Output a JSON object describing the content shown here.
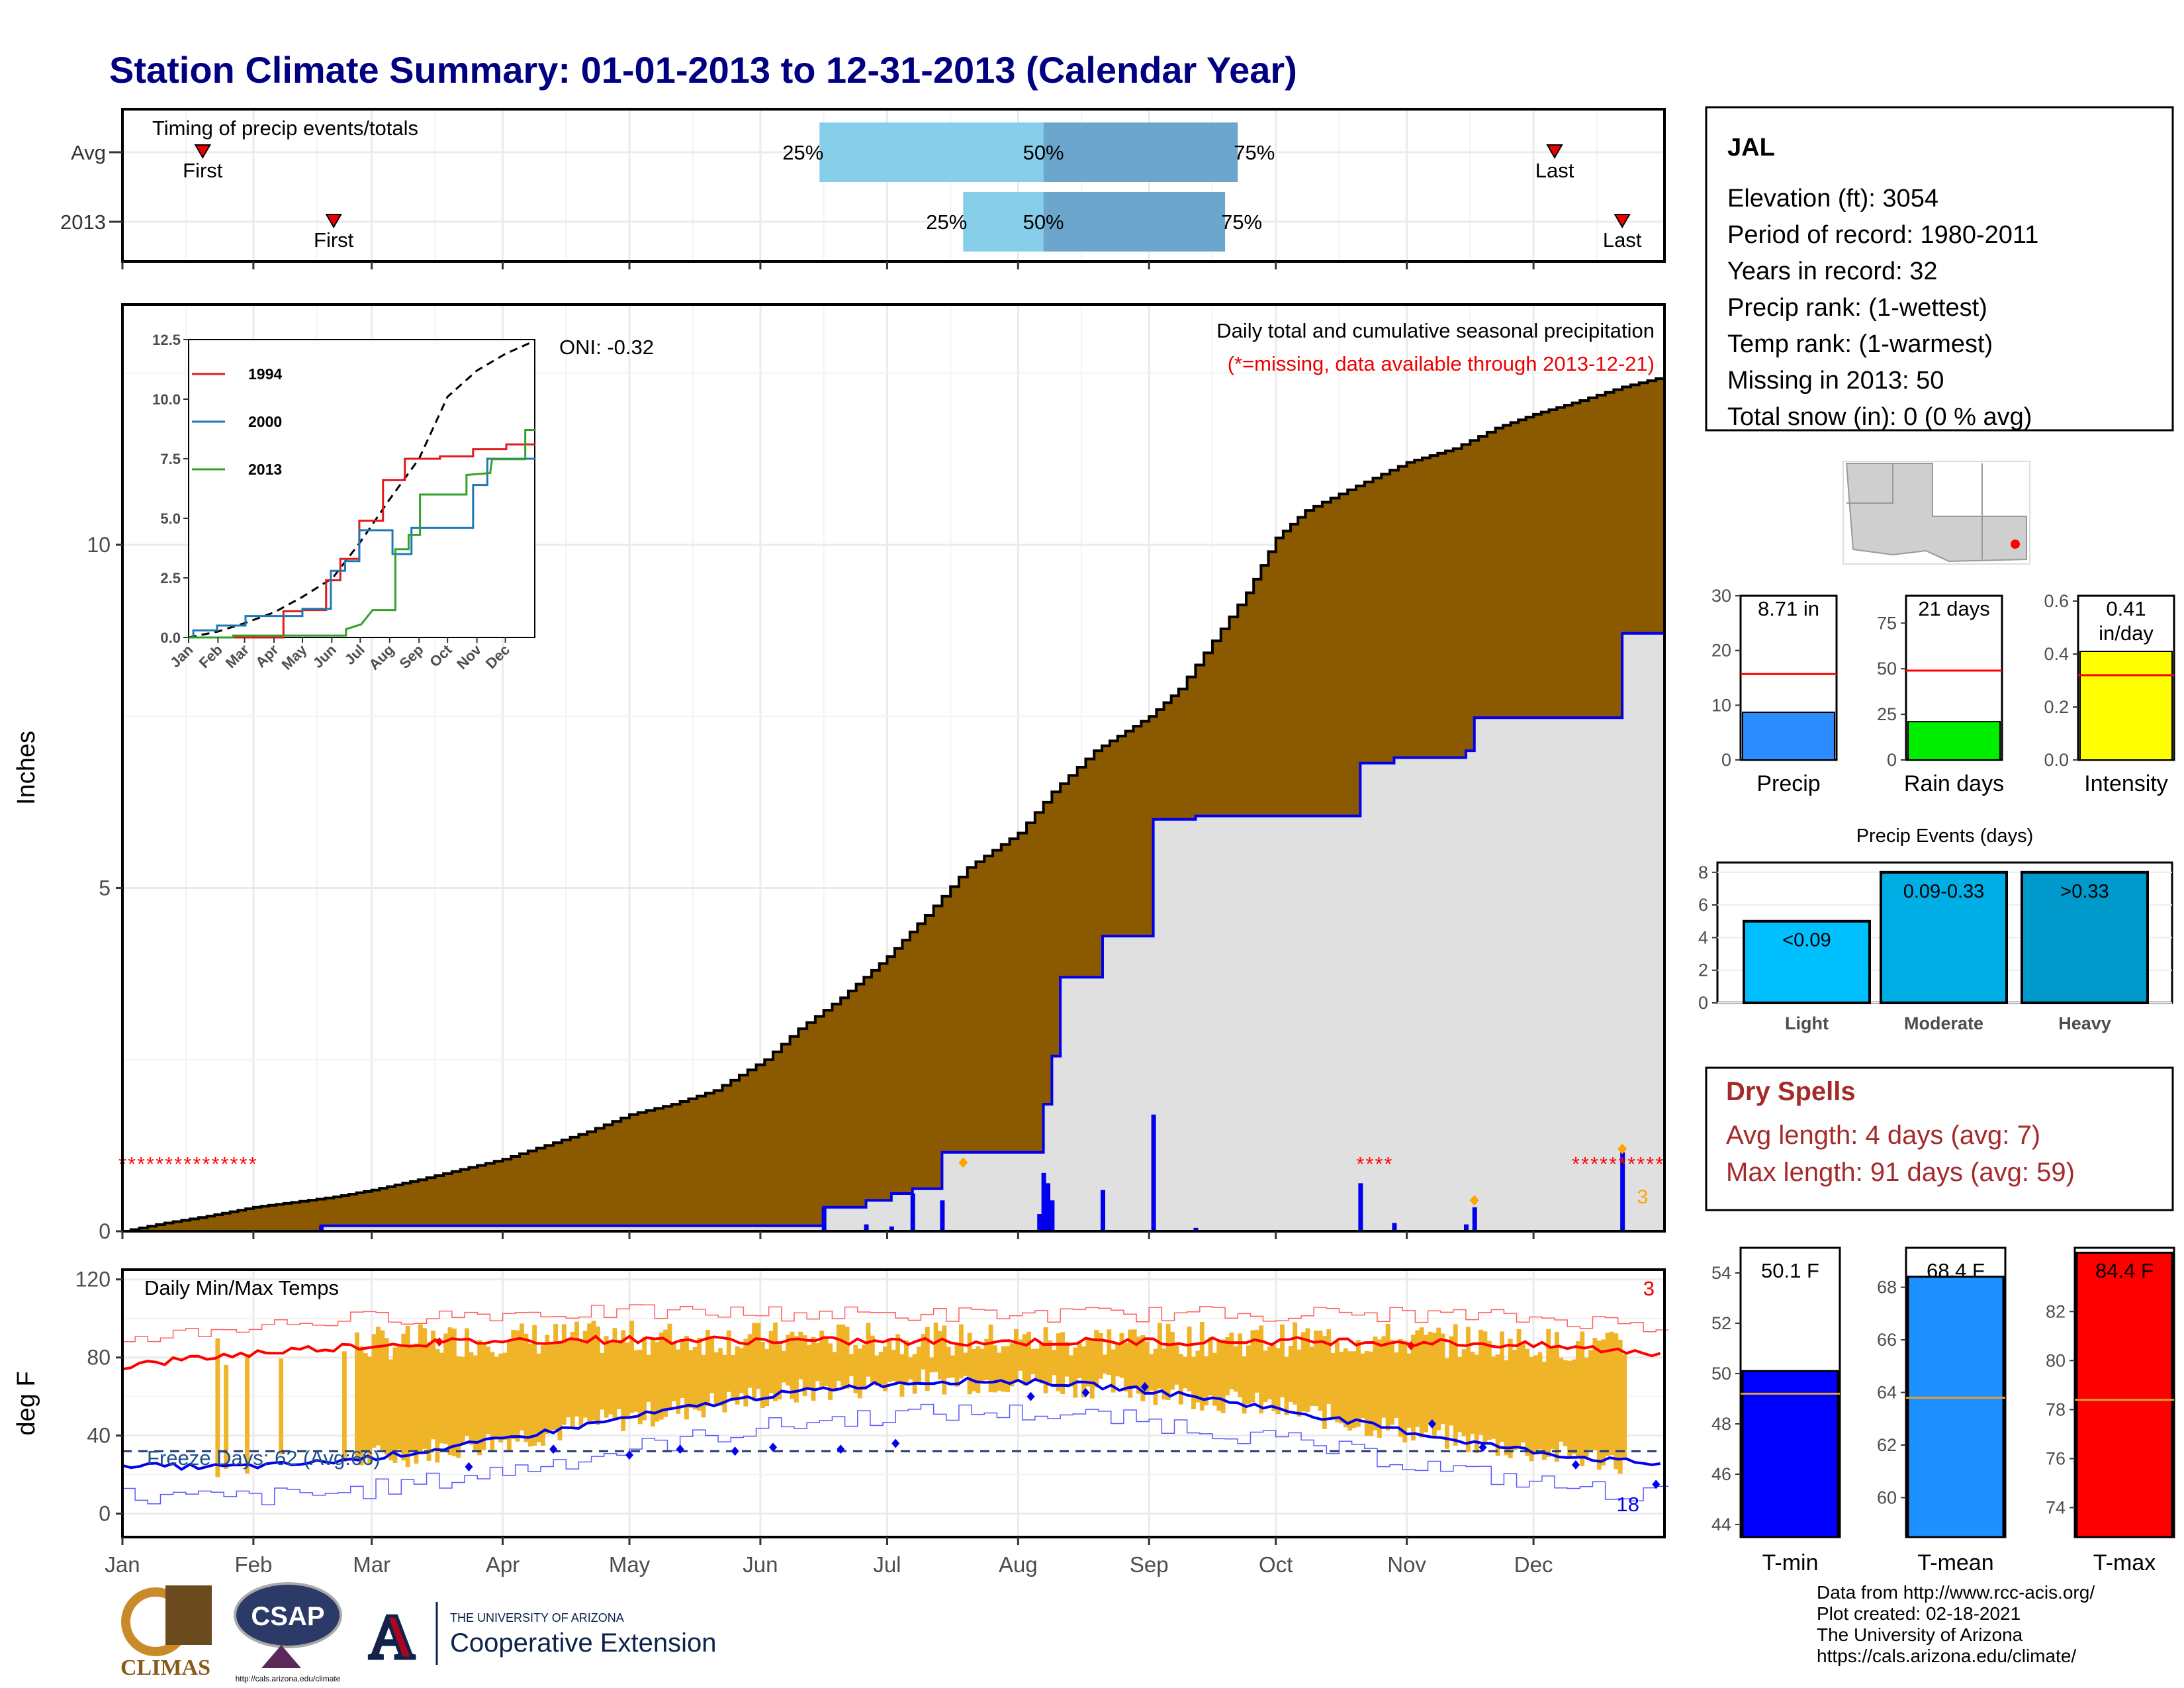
{
  "title": "Station Climate Summary: 01-01-2013 to 12-31-2013 (Calendar Year)",
  "months": [
    "Jan",
    "Feb",
    "Mar",
    "Apr",
    "May",
    "Jun",
    "Jul",
    "Aug",
    "Sep",
    "Oct",
    "Nov",
    "Dec"
  ],
  "timing": {
    "label": "Timing of precip events/totals",
    "rows": [
      {
        "name": "Avg",
        "first_day": 19,
        "p25_day": 165,
        "p50_day": 218,
        "p75_day": 264,
        "last_day": 339
      },
      {
        "name": "2013",
        "first_day": 50,
        "p25_day": 199,
        "p50_day": 218,
        "p75_day": 261,
        "last_day": 355
      }
    ],
    "first_label": "First",
    "last_label": "Last",
    "p25_label": "25%",
    "p50_label": "50%",
    "p75_label": "75%"
  },
  "precip": {
    "ylabel": "Inches",
    "yticks": [
      0,
      5,
      10
    ],
    "ylim": [
      0,
      13.5
    ],
    "oni": "ONI: -0.32",
    "annot1": "Daily total and cumulative seasonal precipitation",
    "annot2": "(*=missing, data available through 2013-12-21)",
    "count": "3",
    "avg_cum": [
      [
        0,
        0
      ],
      [
        10,
        0.12
      ],
      [
        20,
        0.22
      ],
      [
        31,
        0.35
      ],
      [
        40,
        0.42
      ],
      [
        50,
        0.5
      ],
      [
        59,
        0.6
      ],
      [
        70,
        0.75
      ],
      [
        80,
        0.9
      ],
      [
        90,
        1.05
      ],
      [
        100,
        1.25
      ],
      [
        110,
        1.45
      ],
      [
        120,
        1.7
      ],
      [
        130,
        1.85
      ],
      [
        140,
        2.05
      ],
      [
        152,
        2.5
      ],
      [
        160,
        2.95
      ],
      [
        170,
        3.4
      ],
      [
        181,
        4.0
      ],
      [
        190,
        4.6
      ],
      [
        200,
        5.3
      ],
      [
        212,
        5.8
      ],
      [
        220,
        6.4
      ],
      [
        230,
        7.0
      ],
      [
        243,
        7.5
      ],
      [
        250,
        7.9
      ],
      [
        258,
        8.6
      ],
      [
        266,
        9.3
      ],
      [
        273,
        10.1
      ],
      [
        280,
        10.5
      ],
      [
        290,
        10.8
      ],
      [
        304,
        11.2
      ],
      [
        315,
        11.4
      ],
      [
        325,
        11.7
      ],
      [
        334,
        11.9
      ],
      [
        345,
        12.1
      ],
      [
        355,
        12.3
      ],
      [
        365,
        12.45
      ]
    ],
    "cum_2013": [
      [
        0,
        0
      ],
      [
        47,
        0
      ],
      [
        47,
        0.08
      ],
      [
        166,
        0.08
      ],
      [
        166,
        0.35
      ],
      [
        176,
        0.35
      ],
      [
        176,
        0.45
      ],
      [
        182,
        0.45
      ],
      [
        182,
        0.55
      ],
      [
        187,
        0.55
      ],
      [
        187,
        0.62
      ],
      [
        194,
        0.62
      ],
      [
        194,
        1.15
      ],
      [
        218,
        1.15
      ],
      [
        218,
        1.85
      ],
      [
        220,
        1.85
      ],
      [
        220,
        2.55
      ],
      [
        222,
        2.55
      ],
      [
        222,
        3.7
      ],
      [
        232,
        3.7
      ],
      [
        232,
        4.3
      ],
      [
        244,
        4.3
      ],
      [
        244,
        6.0
      ],
      [
        254,
        6.0
      ],
      [
        254,
        6.05
      ],
      [
        293,
        6.05
      ],
      [
        293,
        6.82
      ],
      [
        301,
        6.82
      ],
      [
        301,
        6.9
      ],
      [
        318,
        6.9
      ],
      [
        318,
        7.0
      ],
      [
        320,
        7.0
      ],
      [
        320,
        7.48
      ],
      [
        355,
        7.48
      ],
      [
        355,
        8.71
      ],
      [
        365,
        8.71
      ]
    ],
    "daily_2013": [
      [
        47,
        0.08
      ],
      [
        166,
        0.35
      ],
      [
        176,
        0.1
      ],
      [
        182,
        0.07
      ],
      [
        187,
        0.55
      ],
      [
        194,
        0.45
      ],
      [
        217,
        0.25
      ],
      [
        218,
        0.85
      ],
      [
        219,
        0.7
      ],
      [
        220,
        0.45
      ],
      [
        232,
        0.6
      ],
      [
        244,
        1.7
      ],
      [
        254,
        0.05
      ],
      [
        293,
        0.7
      ],
      [
        301,
        0.12
      ],
      [
        318,
        0.1
      ],
      [
        320,
        0.35
      ],
      [
        355,
        1.15
      ]
    ],
    "missing_ranges": [
      [
        0,
        31
      ],
      [
        293,
        300
      ],
      [
        344,
        365
      ]
    ]
  },
  "inset": {
    "yticks": [
      "0.0",
      "2.5",
      "5.0",
      "7.5",
      "10.0",
      "12.5"
    ],
    "months": [
      "Jan",
      "Feb",
      "Mar",
      "Apr",
      "May",
      "Jun",
      "Jul",
      "Aug",
      "Sep",
      "Oct",
      "Nov",
      "Dec"
    ],
    "legend": [
      {
        "name": "1994",
        "color": "#e31a1c"
      },
      {
        "name": "2000",
        "color": "#1f78b4"
      },
      {
        "name": "2013",
        "color": "#33a02c"
      }
    ],
    "avg": [
      [
        0,
        0
      ],
      [
        31,
        0.25
      ],
      [
        59,
        0.6
      ],
      [
        90,
        1.05
      ],
      [
        120,
        1.7
      ],
      [
        152,
        2.5
      ],
      [
        181,
        4.0
      ],
      [
        212,
        5.8
      ],
      [
        243,
        7.5
      ],
      [
        273,
        10.1
      ],
      [
        304,
        11.2
      ],
      [
        334,
        11.9
      ],
      [
        365,
        12.45
      ]
    ],
    "y1994": [
      [
        0,
        0
      ],
      [
        100,
        0
      ],
      [
        100,
        1.1
      ],
      [
        120,
        1.1
      ],
      [
        120,
        1.15
      ],
      [
        145,
        1.15
      ],
      [
        145,
        2.4
      ],
      [
        160,
        2.4
      ],
      [
        160,
        3.3
      ],
      [
        180,
        3.3
      ],
      [
        180,
        4.9
      ],
      [
        205,
        4.9
      ],
      [
        205,
        6.6
      ],
      [
        228,
        6.6
      ],
      [
        228,
        7.5
      ],
      [
        265,
        7.5
      ],
      [
        265,
        7.6
      ],
      [
        300,
        7.6
      ],
      [
        300,
        7.9
      ],
      [
        335,
        7.9
      ],
      [
        335,
        8.1
      ],
      [
        365,
        8.1
      ]
    ],
    "y2000": [
      [
        0,
        0
      ],
      [
        5,
        0
      ],
      [
        5,
        0.3
      ],
      [
        30,
        0.3
      ],
      [
        30,
        0.5
      ],
      [
        60,
        0.5
      ],
      [
        60,
        0.9
      ],
      [
        120,
        0.9
      ],
      [
        120,
        1.2
      ],
      [
        150,
        1.2
      ],
      [
        150,
        2.8
      ],
      [
        165,
        2.8
      ],
      [
        165,
        3.2
      ],
      [
        180,
        3.2
      ],
      [
        180,
        4.5
      ],
      [
        215,
        4.5
      ],
      [
        215,
        3.5
      ],
      [
        235,
        3.5
      ],
      [
        235,
        4.6
      ],
      [
        300,
        4.6
      ],
      [
        300,
        6.4
      ],
      [
        315,
        6.4
      ],
      [
        315,
        7.5
      ],
      [
        365,
        7.5
      ]
    ],
    "y2013": [
      [
        0,
        0
      ],
      [
        47,
        0
      ],
      [
        47,
        0.08
      ],
      [
        166,
        0.08
      ],
      [
        166,
        0.35
      ],
      [
        182,
        0.55
      ],
      [
        194,
        1.15
      ],
      [
        218,
        1.15
      ],
      [
        218,
        3.7
      ],
      [
        232,
        3.7
      ],
      [
        232,
        4.3
      ],
      [
        244,
        4.3
      ],
      [
        244,
        6.0
      ],
      [
        293,
        6.0
      ],
      [
        293,
        6.82
      ],
      [
        318,
        6.9
      ],
      [
        320,
        7.48
      ],
      [
        355,
        7.48
      ],
      [
        355,
        8.71
      ],
      [
        365,
        8.71
      ]
    ]
  },
  "temps": {
    "ylabel": "deg F",
    "yticks": [
      0,
      40,
      80,
      120
    ],
    "label": "Daily Min/Max Temps",
    "freeze_label": "Freeze Days: 62 (Avg:66)",
    "count_max": "3",
    "count_min": "18",
    "freeze_level": 32
  },
  "bar_panels": [
    {
      "label": "Precip",
      "value_text": "8.71 in",
      "value": 8.71,
      "avg": 15.7,
      "ylim": [
        0,
        30
      ],
      "yticks": [
        0,
        10,
        20,
        30
      ],
      "color": "#2b8cff"
    },
    {
      "label": "Rain days",
      "value_text": "21 days",
      "value": 21,
      "avg": 49,
      "ylim": [
        0,
        90
      ],
      "yticks": [
        0,
        25,
        50,
        75
      ],
      "color": "#00ee00"
    },
    {
      "label": "Intensity",
      "value_text": "0.41\nin/day",
      "value": 0.41,
      "avg": 0.32,
      "ylim": [
        0,
        0.62
      ],
      "yticks": [
        "0.0",
        "0.2",
        "0.4",
        "0.6"
      ],
      "color": "#ffff00"
    }
  ],
  "events": {
    "title": "Precip Events (days)",
    "bars": [
      {
        "label": "Light",
        "range": "<0.09",
        "value": 5,
        "color": "#00bfff"
      },
      {
        "label": "Moderate",
        "range": "0.09-0.33",
        "value": 8,
        "color": "#00aee6"
      },
      {
        "label": "Heavy",
        "range": ">0.33",
        "value": 8,
        "color": "#0099cc"
      }
    ],
    "yticks": [
      0,
      2,
      4,
      6,
      8
    ]
  },
  "station": {
    "name": "JAL",
    "lines": [
      "Elevation (ft): 3054",
      "Period of record: 1980-2011",
      "Years in record: 32",
      "Precip rank:  (1-wettest)",
      "Temp rank:  (1-warmest)",
      "Missing in 2013: 50",
      "Total snow (in): 0 (0 % avg)"
    ]
  },
  "dry_spells": {
    "title": "Dry Spells",
    "avg_line": "Avg length: 4 days (avg: 7)",
    "max_line": "Max length: 91 days (avg: 59)",
    "color": "#a52a2a"
  },
  "temp_bars": [
    {
      "label": "T-min",
      "value_text": "50.1 F",
      "value": 50.1,
      "avg": 49.2,
      "ylim": [
        43.5,
        55
      ],
      "yticks": [
        44,
        46,
        48,
        50,
        52,
        54
      ],
      "color": "#0000ff"
    },
    {
      "label": "T-mean",
      "value_text": "68.4 F",
      "value": 68.4,
      "avg": 63.8,
      "ylim": [
        58.5,
        69.5
      ],
      "yticks": [
        60,
        62,
        64,
        66,
        68
      ],
      "color": "#1e90ff"
    },
    {
      "label": "T-max",
      "value_text": "84.4 F",
      "value": 84.4,
      "avg": 78.4,
      "ylim": [
        72.8,
        84.6
      ],
      "yticks": [
        74,
        76,
        78,
        80,
        82
      ],
      "color": "#ff0000"
    }
  ],
  "logos": {
    "climas": "CLIMAS",
    "csap": "CSAP",
    "csap_url": "http://cals.arizona.edu/climate",
    "ua_small": "THE UNIVERSITY OF ARIZONA",
    "ua_big": "Cooperative Extension"
  },
  "credits": [
    "Data from http://www.rcc-acis.org/",
    "Plot created: 02-18-2021",
    "The University of Arizona",
    "https://cals.arizona.edu/climate/"
  ]
}
